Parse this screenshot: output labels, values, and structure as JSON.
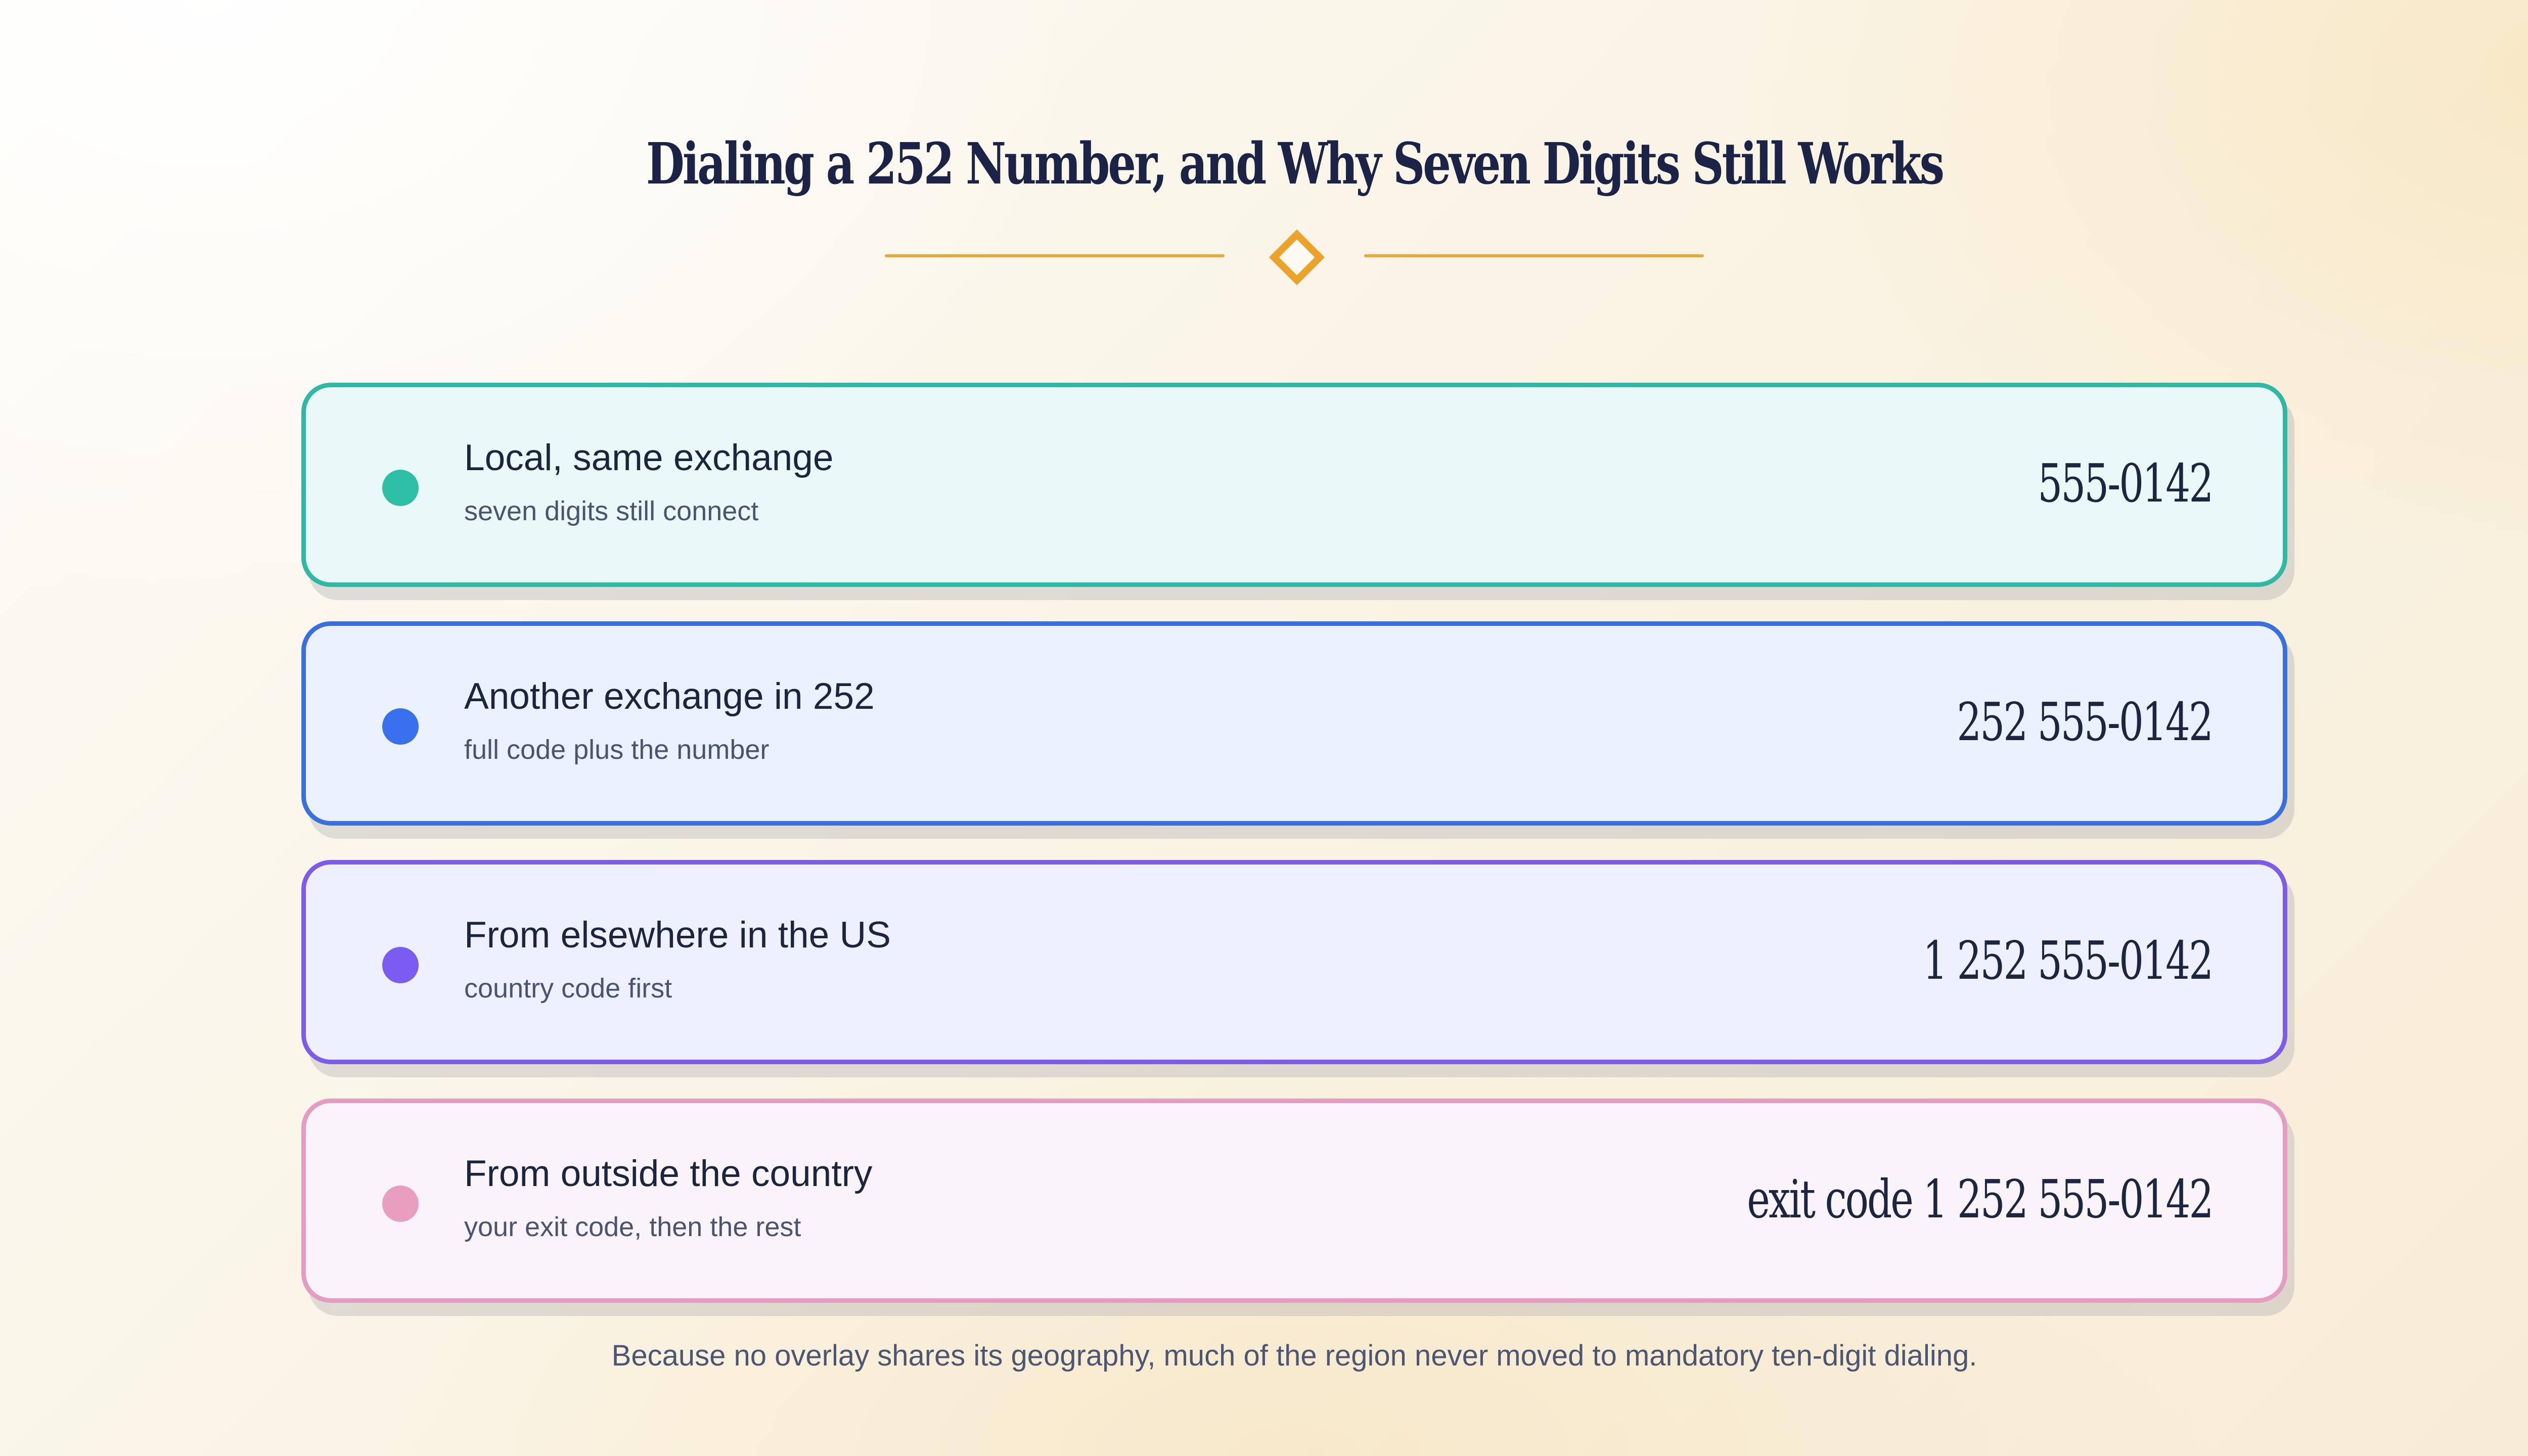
{
  "title": "Dialing a 252 Number, and Why Seven Digits Still Works",
  "colors": {
    "title": "#1b2446",
    "ornament": "#eca32c",
    "teal": "#2fb8a4",
    "blue": "#3a6fe0",
    "purple": "#7c5ce8",
    "pink": "#e49dc0"
  },
  "cards": [
    {
      "label": "Local, same exchange",
      "sub": "seven digits still connect",
      "number": "555-0142",
      "accent": "#2fb8a4"
    },
    {
      "label": "Another exchange in 252",
      "sub": "full code plus the number",
      "number": "252 555-0142",
      "accent": "#3a6fe0"
    },
    {
      "label": "From elsewhere in the US",
      "sub": "country code first",
      "number": "1 252 555-0142",
      "accent": "#7c5ce8"
    },
    {
      "label": "From outside the country",
      "sub": "your exit code, then the rest",
      "number": "exit code 1 252 555-0142",
      "accent": "#e49dc0"
    }
  ],
  "footnote": "Because no overlay shares its geography, much of the region never moved to mandatory ten-digit dialing."
}
